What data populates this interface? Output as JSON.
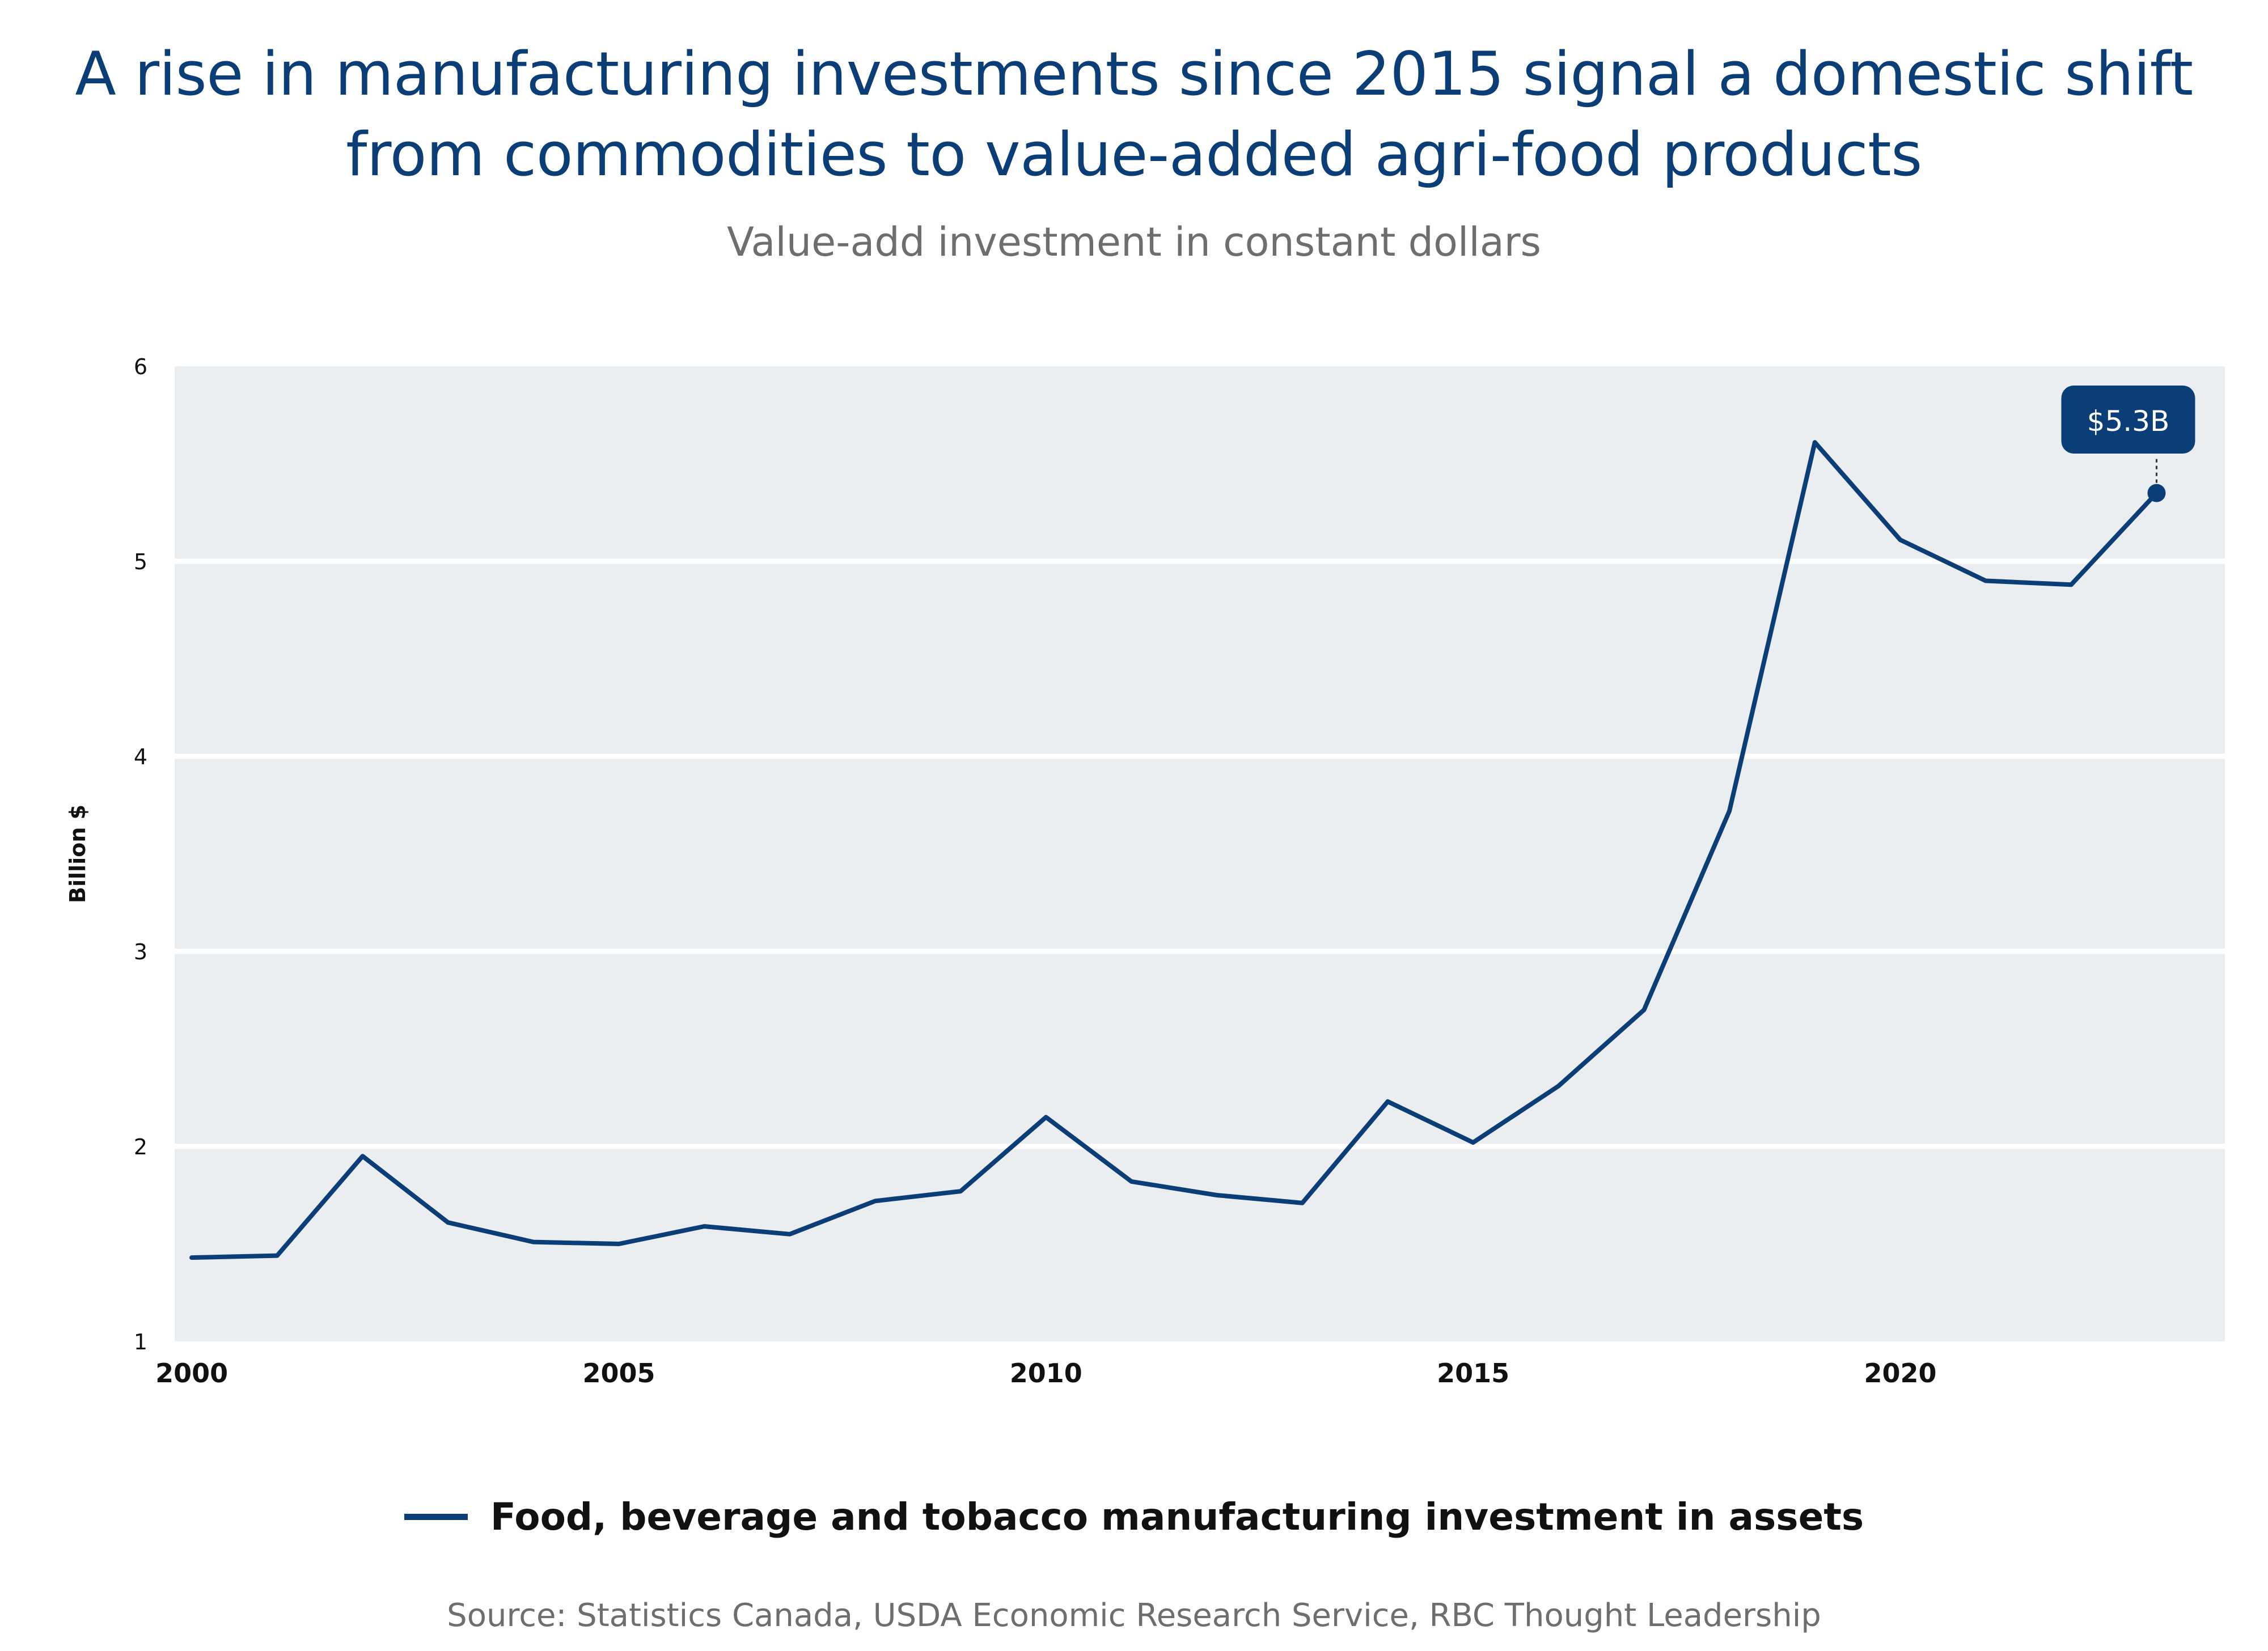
{
  "chart_data": {
    "type": "line",
    "title": "A rise in manufacturing investments since 2015 signal a domestic shift from commodities to value-added agri-food products",
    "title_lines": [
      "A rise in manufacturing investments since 2015 signal a domestic shift",
      "from commodities to value-added agri-food products"
    ],
    "subtitle": "Value-add investment in constant dollars",
    "xlabel": "",
    "ylabel": "Billion $",
    "xlim": [
      1999.8,
      2023.8
    ],
    "ylim": [
      1,
      6
    ],
    "xticks": [
      2000,
      2005,
      2010,
      2015,
      2020
    ],
    "yticks": [
      1,
      2,
      3,
      4,
      5,
      6
    ],
    "grid": true,
    "legend_position": "bottom",
    "series": [
      {
        "name": "Food, beverage and tobacco manufacturing investment in assets",
        "color": "#0b3d76",
        "x": [
          2000,
          2001,
          2002,
          2003,
          2004,
          2005,
          2006,
          2007,
          2008,
          2009,
          2010,
          2011,
          2012,
          2013,
          2014,
          2015,
          2016,
          2017,
          2018,
          2019,
          2020,
          2021,
          2022,
          2023
        ],
        "values": [
          1.43,
          1.44,
          1.95,
          1.61,
          1.51,
          1.5,
          1.59,
          1.55,
          1.72,
          1.77,
          2.15,
          1.82,
          1.75,
          1.71,
          2.23,
          2.02,
          2.31,
          2.7,
          3.72,
          5.61,
          5.11,
          4.9,
          4.88,
          5.35
        ]
      }
    ],
    "annotation": {
      "text": "$5.3B",
      "x": 2023,
      "y": 5.35
    },
    "source": "Source:  Statistics Canada, USDA Economic Research Service, RBC Thought Leadership"
  },
  "colors": {
    "title": "#0b3d76",
    "plot_background": "#eaeef1",
    "gridline": "#ffffff",
    "series": "#0b3d76",
    "muted_text": "#6e6e6e"
  }
}
